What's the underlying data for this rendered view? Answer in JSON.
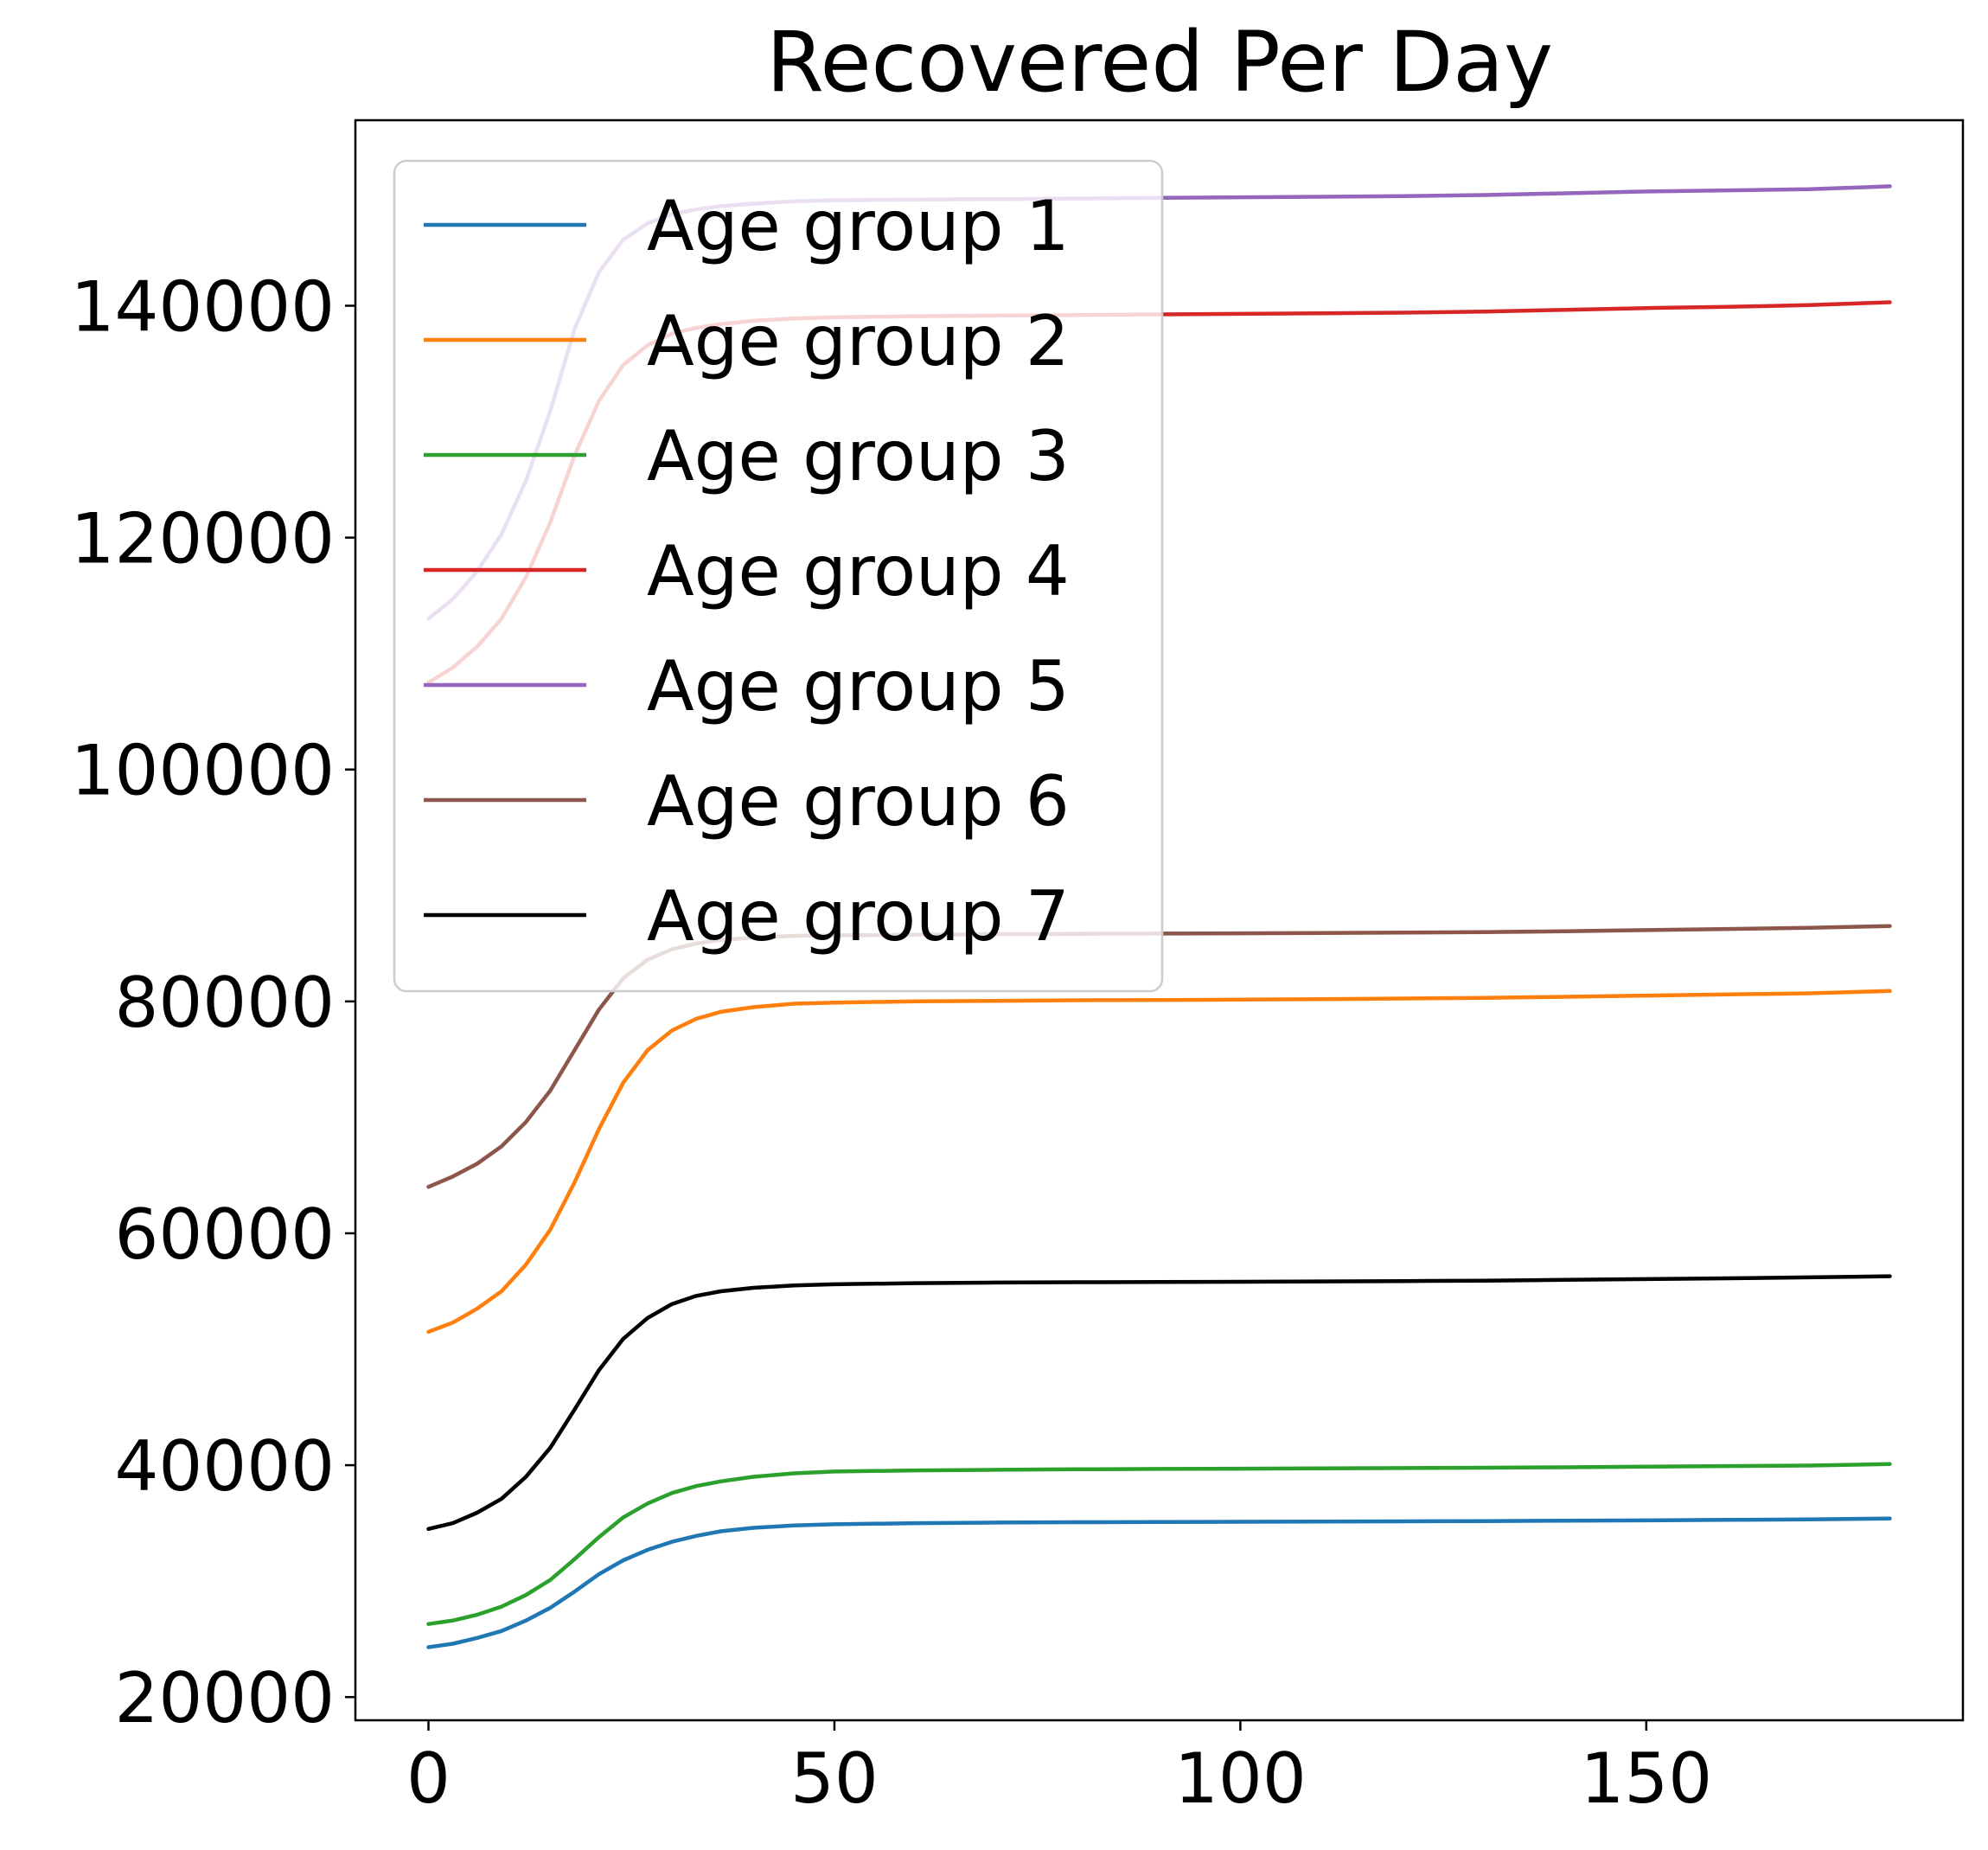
{
  "chart_data": {
    "type": "line",
    "title": "Recovered Per Day",
    "xlabel": "",
    "ylabel": "",
    "xlim": [
      -9,
      189
    ],
    "ylim": [
      18000,
      156000
    ],
    "x_ticks": [
      0,
      50,
      100,
      150
    ],
    "y_ticks": [
      20000,
      40000,
      60000,
      80000,
      100000,
      120000,
      140000
    ],
    "grid": false,
    "legend_position": "upper-left",
    "x": [
      0,
      3,
      6,
      9,
      12,
      15,
      18,
      21,
      24,
      27,
      30,
      33,
      36,
      40,
      45,
      50,
      60,
      70,
      80,
      90,
      100,
      110,
      120,
      130,
      140,
      150,
      160,
      170,
      180
    ],
    "series": [
      {
        "name": "Age group 1",
        "color": "#1f77b4",
        "values": [
          24300,
          24600,
          25100,
          25700,
          26600,
          27700,
          29100,
          30600,
          31800,
          32700,
          33400,
          33900,
          34300,
          34600,
          34800,
          34900,
          35000,
          35050,
          35080,
          35100,
          35120,
          35140,
          35160,
          35180,
          35210,
          35240,
          35280,
          35330,
          35400
        ]
      },
      {
        "name": "Age group 2",
        "color": "#ff7f0e",
        "values": [
          51500,
          52300,
          53500,
          55000,
          57300,
          60300,
          64400,
          69000,
          73000,
          75800,
          77500,
          78500,
          79100,
          79500,
          79800,
          79900,
          80000,
          80050,
          80100,
          80120,
          80150,
          80200,
          80250,
          80300,
          80400,
          80500,
          80600,
          80700,
          80900
        ]
      },
      {
        "name": "Age group 3",
        "color": "#2ca02c",
        "values": [
          26300,
          26600,
          27100,
          27800,
          28800,
          30100,
          31900,
          33800,
          35500,
          36700,
          37600,
          38200,
          38600,
          39000,
          39300,
          39450,
          39550,
          39600,
          39650,
          39680,
          39700,
          39720,
          39750,
          39780,
          39820,
          39870,
          39920,
          39970,
          40100
        ]
      },
      {
        "name": "Age group 4",
        "color": "#d62728",
        "values": [
          107500,
          108800,
          110600,
          113000,
          116600,
          121300,
          127100,
          131800,
          134900,
          136600,
          137600,
          138100,
          138400,
          138700,
          138900,
          139000,
          139100,
          139150,
          139200,
          139250,
          139300,
          139350,
          139400,
          139500,
          139650,
          139800,
          139900,
          140050,
          140300
        ]
      },
      {
        "name": "Age group 5",
        "color": "#9467bd",
        "values": [
          113000,
          114700,
          117100,
          120300,
          124900,
          130900,
          138000,
          142900,
          145700,
          147100,
          147900,
          148300,
          148600,
          148800,
          149000,
          149100,
          149150,
          149200,
          149250,
          149300,
          149350,
          149400,
          149450,
          149550,
          149700,
          149850,
          149950,
          150050,
          150300
        ]
      },
      {
        "name": "Age group 6",
        "color": "#8c564b",
        "values": [
          64000,
          64900,
          66000,
          67500,
          69600,
          72300,
          75800,
          79300,
          82000,
          83600,
          84500,
          85000,
          85300,
          85500,
          85650,
          85700,
          85750,
          85800,
          85830,
          85850,
          85870,
          85900,
          85930,
          85970,
          86050,
          86150,
          86250,
          86350,
          86500
        ]
      },
      {
        "name": "Age group 7",
        "color": "#000000",
        "values": [
          34500,
          35000,
          35900,
          37100,
          39000,
          41500,
          44800,
          48200,
          50900,
          52700,
          53900,
          54600,
          55000,
          55300,
          55500,
          55600,
          55700,
          55750,
          55780,
          55800,
          55820,
          55850,
          55880,
          55920,
          55980,
          56050,
          56120,
          56200,
          56300
        ]
      }
    ]
  }
}
